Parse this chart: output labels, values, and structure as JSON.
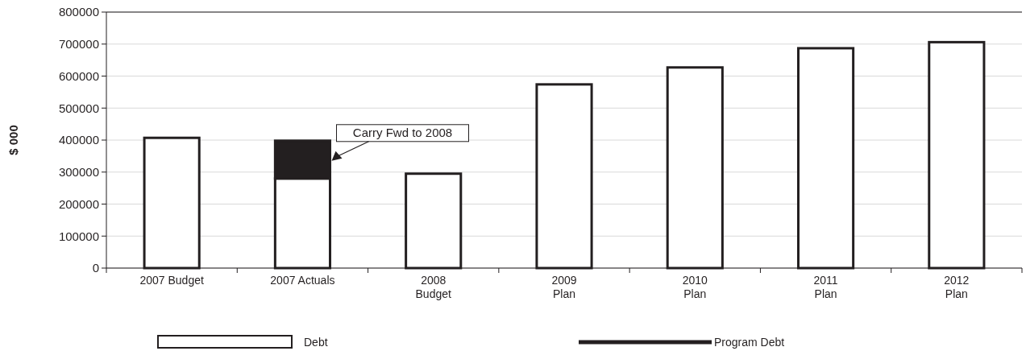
{
  "chart_data": {
    "type": "bar",
    "ylabel": "$ 000",
    "categories": [
      "2007 Budget",
      "2007 Actuals",
      "2008\nBudget",
      "2009\nPlan",
      "2010\nPlan",
      "2011\nPlan",
      "2012\nPlan"
    ],
    "series": [
      {
        "name": "Debt",
        "color": "#ffffff",
        "values": [
          407000,
          280000,
          295000,
          574000,
          627000,
          687000,
          706000
        ]
      },
      {
        "color": "#231f20",
        "values": [
          null,
          118000,
          null,
          null,
          null,
          null,
          null
        ]
      },
      {
        "name": "Program Debt",
        "type": "line",
        "color": "#231f20",
        "values": [
          null,
          null,
          null,
          null,
          null,
          null,
          null
        ]
      }
    ],
    "stacked": true,
    "ylim": [
      0,
      800000
    ],
    "yticks": [
      0,
      100000,
      200000,
      300000,
      400000,
      500000,
      600000,
      700000,
      800000
    ],
    "grid": "y",
    "legend": "bottom",
    "annotations": [
      "Carry Fwd to 2008"
    ]
  }
}
